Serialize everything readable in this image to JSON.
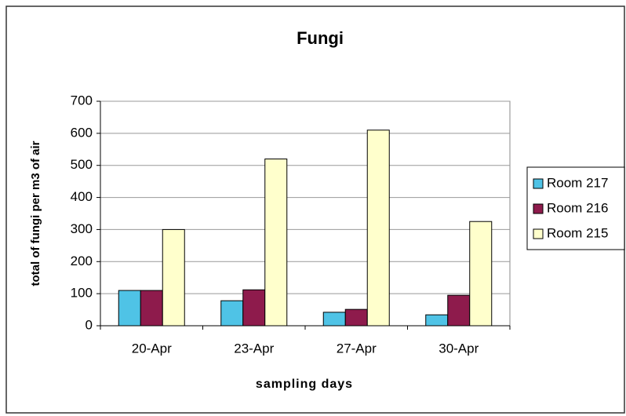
{
  "chart_data": {
    "type": "bar",
    "title": "Fungi",
    "x_label": "sampling days",
    "y_label": "total of fungi per m3 of air",
    "categories": [
      "20-Apr",
      "23-Apr",
      "27-Apr",
      "30-Apr"
    ],
    "series": [
      {
        "name": "Room 217",
        "color": "#4fc3e6",
        "values": [
          110,
          78,
          42,
          34
        ]
      },
      {
        "name": "Room 216",
        "color": "#8e1b4c",
        "values": [
          110,
          112,
          51,
          95
        ]
      },
      {
        "name": "Room 215",
        "color": "#ffffcc",
        "values": [
          300,
          520,
          610,
          325
        ]
      }
    ],
    "ylim": [
      0,
      700
    ],
    "yticks": [
      0,
      100,
      200,
      300,
      400,
      500,
      600,
      700
    ],
    "grid": true,
    "legend": "right"
  }
}
